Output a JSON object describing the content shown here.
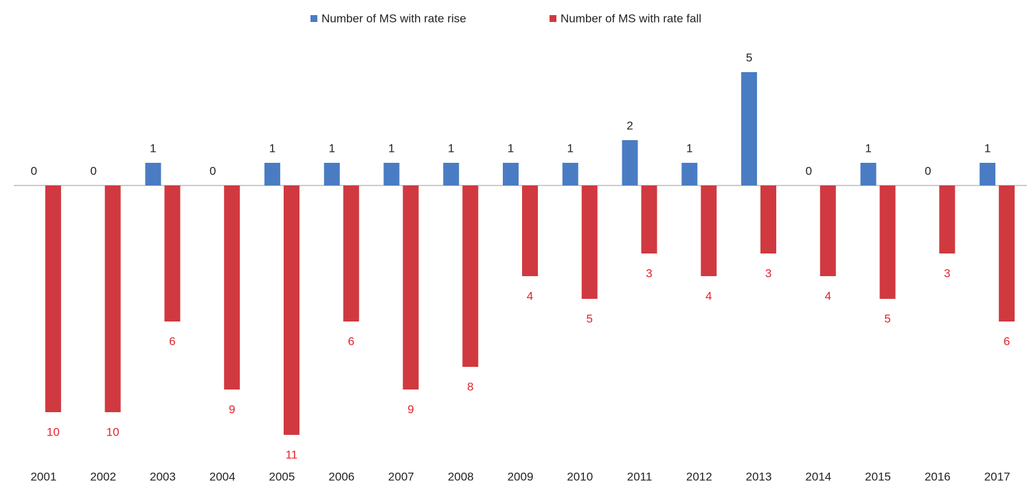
{
  "chart_data": {
    "type": "bar",
    "categories": [
      "2001",
      "2002",
      "2003",
      "2004",
      "2005",
      "2006",
      "2007",
      "2008",
      "2009",
      "2010",
      "2011",
      "2012",
      "2013",
      "2014",
      "2015",
      "2016",
      "2017"
    ],
    "series": [
      {
        "name": "Number of MS with rate rise",
        "color": "#4a7cc4",
        "values": [
          0,
          0,
          1,
          0,
          1,
          1,
          1,
          1,
          1,
          1,
          2,
          1,
          5,
          0,
          1,
          0,
          1
        ]
      },
      {
        "name": "Number of MS with rate fall",
        "color": "#d0393f",
        "values": [
          -10,
          -10,
          -6,
          -9,
          -11,
          -6,
          -9,
          -8,
          -4,
          -5,
          -3,
          -4,
          -3,
          -4,
          -5,
          -3,
          -6
        ],
        "value_labels": [
          "10",
          "10",
          "6",
          "9",
          "11",
          "6",
          "9",
          "8",
          "4",
          "5",
          "3",
          "4",
          "3",
          "4",
          "5",
          "3",
          "6"
        ]
      }
    ],
    "ylim": [
      -12,
      6
    ],
    "legend": "top"
  }
}
